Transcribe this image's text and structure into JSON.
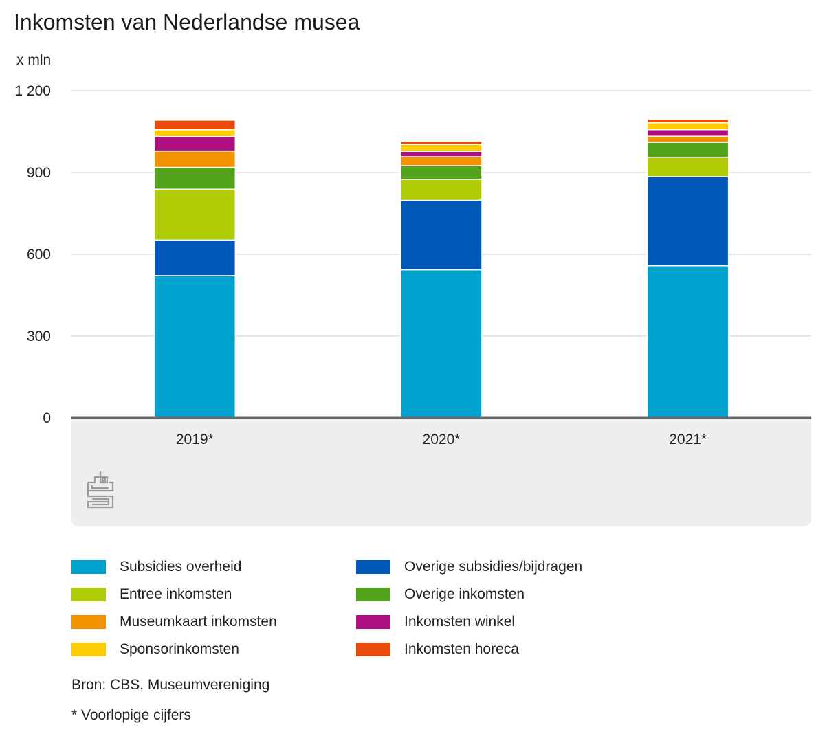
{
  "chart_data": {
    "type": "bar",
    "stacked": true,
    "title": "Inkomsten van Nederlandse musea",
    "unit_label": "x mln",
    "categories": [
      "2019*",
      "2020*",
      "2021*"
    ],
    "ylim": [
      0,
      1200
    ],
    "yticks": [
      0,
      300,
      600,
      900,
      1200
    ],
    "ytick_labels": [
      "0",
      "300",
      "600",
      "900",
      "1 200"
    ],
    "grid": true,
    "legend_position": "bottom",
    "series": [
      {
        "name": "Subsidies overheid",
        "color": "#00a1cd",
        "values": [
          522,
          543,
          558
        ]
      },
      {
        "name": "Overige subsidies/bijdragen",
        "color": "#0058b8",
        "values": [
          130,
          255,
          327
        ]
      },
      {
        "name": "Entree inkomsten",
        "color": "#afcb05",
        "values": [
          187,
          77,
          71
        ]
      },
      {
        "name": "Overige inkomsten",
        "color": "#53a31d",
        "values": [
          80,
          50,
          55
        ]
      },
      {
        "name": "Museumkaart inkomsten",
        "color": "#f39200",
        "values": [
          60,
          33,
          22
        ]
      },
      {
        "name": "Inkomsten winkel",
        "color": "#af0e80",
        "values": [
          53,
          20,
          24
        ]
      },
      {
        "name": "Sponsorinkomsten",
        "color": "#ffcc00",
        "values": [
          25,
          25,
          25
        ]
      },
      {
        "name": "Inkomsten horeca",
        "color": "#e94c0a",
        "values": [
          35,
          12,
          14
        ]
      }
    ],
    "legend_order": [
      "Subsidies overheid",
      "Overige subsidies/bijdragen",
      "Entree inkomsten",
      "Overige inkomsten",
      "Museumkaart inkomsten",
      "Inkomsten winkel",
      "Sponsorinkomsten",
      "Inkomsten horeca"
    ]
  },
  "footer": {
    "source": "Bron: CBS, Museumvereniging",
    "note": "* Voorlopige cijfers"
  },
  "logo_icon": "cbs-logo-icon"
}
